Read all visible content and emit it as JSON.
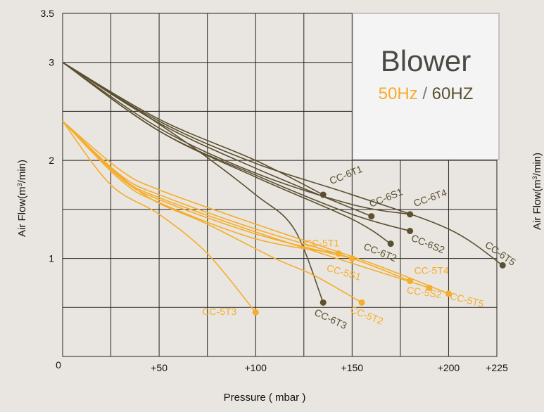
{
  "chart_data": {
    "type": "line",
    "xlabel": "Pressure ( mbar )",
    "ylabel_prefix": "Air Flow(m",
    "ylabel_sup": "3",
    "ylabel_suffix": "/min)",
    "x_tick_labels": [
      "0",
      "+50",
      "+100",
      "+150",
      "+200",
      "+225"
    ],
    "x_tick_values": [
      0,
      50,
      100,
      150,
      200,
      225
    ],
    "x_grid": [
      0,
      25,
      50,
      75,
      100,
      125,
      150,
      175,
      200,
      225
    ],
    "y_tick_labels": [
      "1",
      "2",
      "3",
      "3.5"
    ],
    "y_tick_values": [
      1,
      2,
      3,
      3.5
    ],
    "y_grid": [
      0.5,
      1,
      1.5,
      2,
      2.5,
      3,
      3.5
    ],
    "xlim": [
      0,
      225
    ],
    "ylim": [
      0,
      3.5
    ],
    "grid": true,
    "legend": {
      "title": "Blower",
      "hz50": "50Hz",
      "sep": " / ",
      "hz60": "60HZ",
      "color50": "#f5ad2b",
      "color60": "#5b5030"
    },
    "series": [
      {
        "name": "CC-6T1",
        "group": "60HZ",
        "points": [
          [
            0,
            3
          ],
          [
            50,
            2.42
          ],
          [
            100,
            2.0
          ],
          [
            135,
            1.65
          ]
        ]
      },
      {
        "name": "CC-6S1",
        "group": "60HZ",
        "points": [
          [
            0,
            3
          ],
          [
            50,
            2.38
          ],
          [
            100,
            1.92
          ],
          [
            160,
            1.43
          ]
        ]
      },
      {
        "name": "CC-6T4",
        "group": "60HZ",
        "points": [
          [
            0,
            3
          ],
          [
            50,
            2.33
          ],
          [
            100,
            1.87
          ],
          [
            150,
            1.55
          ],
          [
            180,
            1.45
          ]
        ]
      },
      {
        "name": "CC-6S2",
        "group": "60HZ",
        "points": [
          [
            0,
            3
          ],
          [
            50,
            2.3
          ],
          [
            100,
            1.85
          ],
          [
            150,
            1.45
          ],
          [
            180,
            1.28
          ]
        ]
      },
      {
        "name": "CC-6T5",
        "group": "60HZ",
        "points": [
          [
            0,
            3
          ],
          [
            50,
            2.4
          ],
          [
            100,
            1.97
          ],
          [
            150,
            1.65
          ],
          [
            200,
            1.3
          ],
          [
            228,
            0.93
          ]
        ]
      },
      {
        "name": "CC-6T2",
        "group": "60HZ",
        "points": [
          [
            0,
            3
          ],
          [
            50,
            2.3
          ],
          [
            100,
            1.83
          ],
          [
            150,
            1.4
          ],
          [
            170,
            1.15
          ]
        ]
      },
      {
        "name": "CC-6T3",
        "group": "60HZ",
        "points": [
          [
            0,
            3
          ],
          [
            40,
            2.5
          ],
          [
            70,
            2.1
          ],
          [
            100,
            1.65
          ],
          [
            120,
            1.3
          ],
          [
            135,
            0.55
          ]
        ]
      },
      {
        "name": "CC-5T1",
        "group": "50Hz",
        "points": [
          [
            0,
            2.4
          ],
          [
            30,
            1.8
          ],
          [
            50,
            1.57
          ],
          [
            100,
            1.2
          ],
          [
            143,
            1.05
          ]
        ]
      },
      {
        "name": "CC-5S1",
        "group": "50Hz",
        "points": [
          [
            0,
            2.4
          ],
          [
            30,
            1.82
          ],
          [
            50,
            1.6
          ],
          [
            100,
            1.25
          ],
          [
            150,
            1.0
          ]
        ]
      },
      {
        "name": "CC-5T4",
        "group": "50Hz",
        "points": [
          [
            0,
            2.4
          ],
          [
            30,
            1.85
          ],
          [
            50,
            1.65
          ],
          [
            100,
            1.3
          ],
          [
            150,
            1.0
          ],
          [
            180,
            0.77
          ]
        ]
      },
      {
        "name": "CC-5S2",
        "group": "50Hz",
        "points": [
          [
            0,
            2.4
          ],
          [
            30,
            1.83
          ],
          [
            50,
            1.62
          ],
          [
            100,
            1.27
          ],
          [
            150,
            0.95
          ],
          [
            190,
            0.7
          ]
        ]
      },
      {
        "name": "CC-5T5",
        "group": "50Hz",
        "points": [
          [
            0,
            2.4
          ],
          [
            30,
            1.9
          ],
          [
            50,
            1.7
          ],
          [
            100,
            1.35
          ],
          [
            160,
            0.95
          ],
          [
            200,
            0.64
          ]
        ]
      },
      {
        "name": "CC-5T2",
        "group": "50Hz",
        "points": [
          [
            0,
            2.4
          ],
          [
            40,
            1.68
          ],
          [
            75,
            1.35
          ],
          [
            110,
            1.0
          ],
          [
            130,
            0.83
          ],
          [
            155,
            0.55
          ]
        ]
      },
      {
        "name": "CC-5T3",
        "group": "50Hz",
        "points": [
          [
            0,
            2.4
          ],
          [
            25,
            1.75
          ],
          [
            50,
            1.45
          ],
          [
            75,
            1.05
          ],
          [
            100,
            0.45
          ]
        ]
      }
    ]
  }
}
